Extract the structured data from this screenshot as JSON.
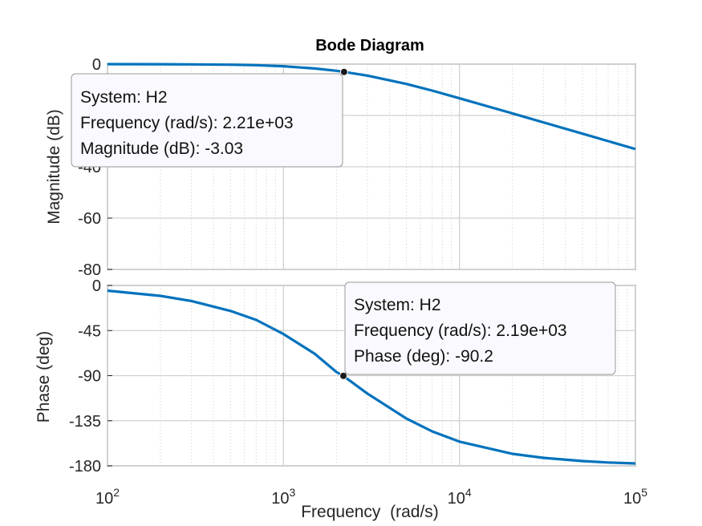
{
  "chart_data": {
    "type": "line",
    "title": "Bode Diagram",
    "xlabel": "Frequency  (rad/s)",
    "xscale": "log",
    "xlim": [
      100,
      100000
    ],
    "x_ticks": [
      {
        "value": 100,
        "base": "10",
        "exp": "2"
      },
      {
        "value": 1000,
        "base": "10",
        "exp": "3"
      },
      {
        "value": 10000,
        "base": "10",
        "exp": "4"
      },
      {
        "value": 100000,
        "base": "10",
        "exp": "5"
      }
    ],
    "grid": true,
    "line_color": "#0072bd",
    "panels": [
      {
        "name": "magnitude",
        "ylabel": "Magnitude (dB)",
        "ylim": [
          -80,
          0
        ],
        "y_ticks": [
          "0",
          "-20",
          "-40",
          "-60",
          "-80"
        ],
        "series": [
          {
            "x": [
              100,
              200,
              300,
              500,
              700,
              1000,
              1500,
              2000,
              2210,
              3000,
              5000,
              7000,
              10000,
              20000,
              30000,
              50000,
              70000,
              100000
            ],
            "values": [
              -0.01,
              -0.04,
              -0.08,
              -0.22,
              -0.42,
              -0.8,
              -1.7,
              -2.58,
              -3.03,
              -4.47,
              -7.72,
              -10.3,
              -13.3,
              -19.2,
              -22.7,
              -27.1,
              -30.0,
              -33.1
            ]
          }
        ],
        "datatip": {
          "x": 2210,
          "y": -3.03,
          "lines": [
            "System: H2",
            "Frequency (rad/s): 2.21e+03",
            "Magnitude (dB): -3.03"
          ]
        }
      },
      {
        "name": "phase",
        "ylabel": "Phase (deg)",
        "ylim": [
          -180,
          0
        ],
        "y_ticks": [
          "0",
          "-45",
          "-90",
          "-135",
          "-180"
        ],
        "series": [
          {
            "x": [
              100,
              200,
              300,
              500,
              700,
              1000,
              1500,
              2000,
              2190,
              3000,
              5000,
              7000,
              10000,
              20000,
              30000,
              50000,
              70000,
              100000
            ],
            "values": [
              -5.2,
              -10.4,
              -15.5,
              -25.4,
              -34.4,
              -48.5,
              -68.0,
              -86.4,
              -90.2,
              -107.9,
              -132.8,
              -145.6,
              -155.8,
              -168.0,
              -172.0,
              -175.2,
              -176.6,
              -177.6
            ]
          }
        ],
        "datatip": {
          "x": 2190,
          "y": -90.2,
          "lines": [
            "System: H2",
            "Frequency (rad/s): 2.19e+03",
            "Phase (deg): -90.2"
          ]
        }
      }
    ]
  }
}
